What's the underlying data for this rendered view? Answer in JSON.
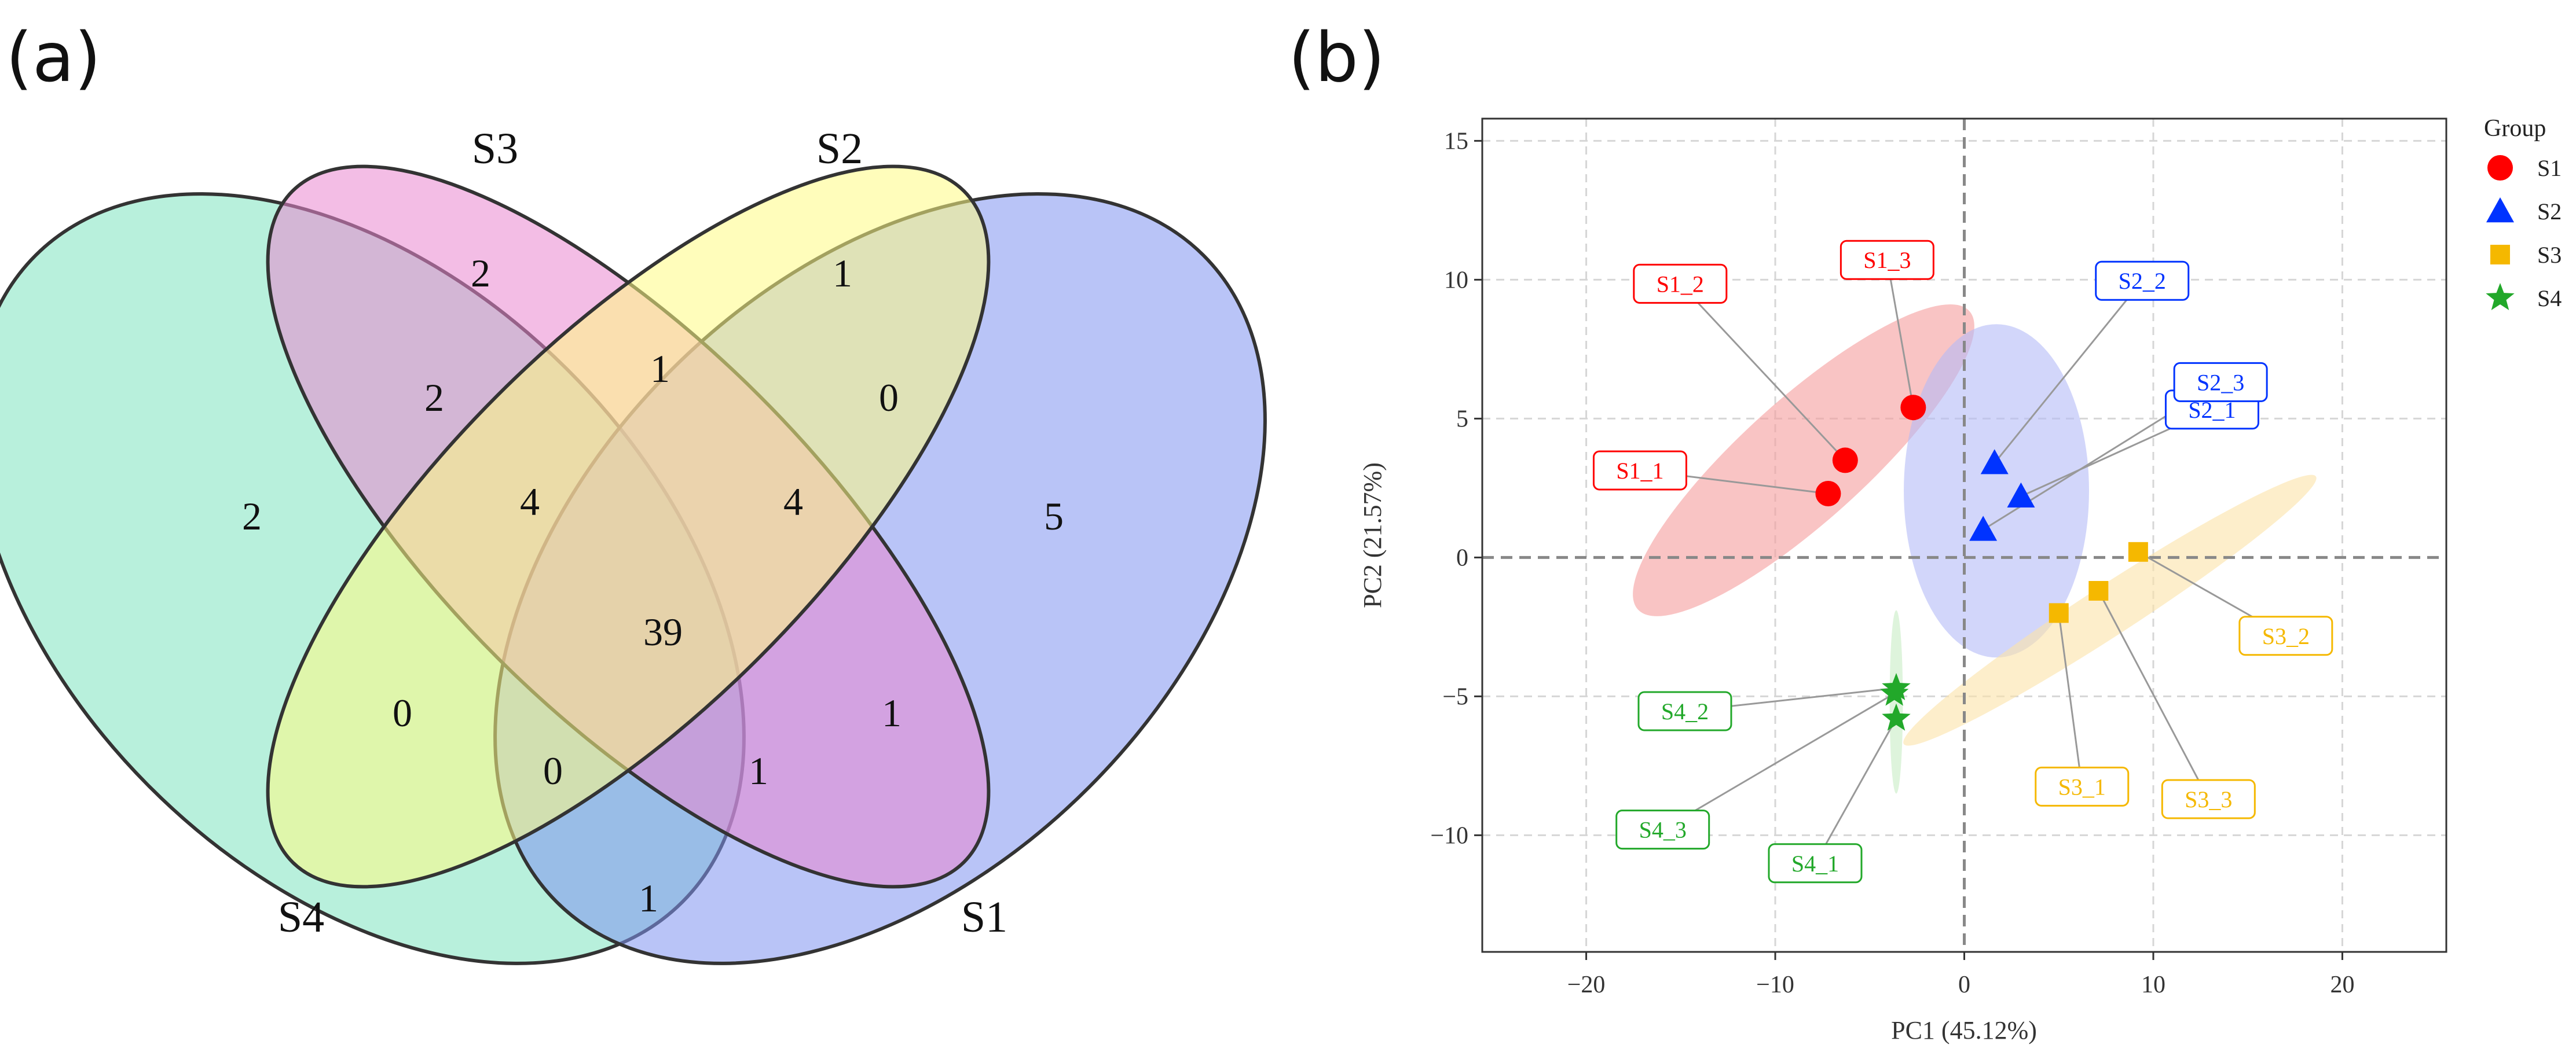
{
  "panel_a_label": "(a)",
  "panel_b_label": "(b)",
  "venn": {
    "sets": [
      {
        "name": "S1",
        "color": "#8093f1"
      },
      {
        "name": "S2",
        "color": "#fffb84"
      },
      {
        "name": "S3",
        "color": "#e986cf"
      },
      {
        "name": "S4",
        "color": "#7ee3bf"
      }
    ],
    "counts": [
      {
        "region": "S3 only",
        "value": "2"
      },
      {
        "region": "S2 only",
        "value": "1"
      },
      {
        "region": "S3&S4",
        "value": "2"
      },
      {
        "region": "S2&S3",
        "value": "1"
      },
      {
        "region": "S1&S2",
        "value": "0"
      },
      {
        "region": "S4 only",
        "value": "2"
      },
      {
        "region": "S2&S3&S4",
        "value": "4"
      },
      {
        "region": "S1&S2&S3",
        "value": "4"
      },
      {
        "region": "S1 only",
        "value": "5"
      },
      {
        "region": "S1&S2&S3&S4",
        "value": "39"
      },
      {
        "region": "S2&S4",
        "value": "0"
      },
      {
        "region": "S1&S3",
        "value": "1"
      },
      {
        "region": "S1&S2&S4",
        "value": "0"
      },
      {
        "region": "S1&S3&S4",
        "value": "1"
      },
      {
        "region": "S1&S4",
        "value": "1"
      }
    ]
  },
  "chart_data": {
    "type": "scatter",
    "xlabel": "PC1 (45.12%)",
    "ylabel": "PC2 (21.57%)",
    "xlim": [
      -25.5,
      25.5
    ],
    "ylim": [
      -14.2,
      15.8
    ],
    "xticks": [
      -20,
      -10,
      0,
      10,
      20
    ],
    "xtick_labels": [
      "−20",
      "−10",
      "0",
      "10",
      "20"
    ],
    "yticks": [
      -10,
      -5,
      0,
      5,
      10,
      15
    ],
    "ytick_labels": [
      "−10",
      "−5",
      "0",
      "5",
      "10",
      "15"
    ],
    "grid": true,
    "legend_title": "Group",
    "legend_position": "right",
    "series": [
      {
        "name": "S1",
        "color": "#ff0000",
        "marker": "circle",
        "points": [
          {
            "label": "S1_1",
            "x": -7.2,
            "y": 2.3
          },
          {
            "label": "S1_2",
            "x": -6.3,
            "y": 3.5
          },
          {
            "label": "S1_3",
            "x": -2.7,
            "y": 5.4
          }
        ],
        "ellipse": {
          "cx": -8.5,
          "cy": 3.5,
          "rx": 11.8,
          "ry": 2.2,
          "angle_deg": 42,
          "fill": "#f59c9c"
        }
      },
      {
        "name": "S2",
        "color": "#0033ff",
        "marker": "triangle",
        "points": [
          {
            "label": "S2_1",
            "x": 3.0,
            "y": 2.2
          },
          {
            "label": "S2_2",
            "x": 1.6,
            "y": 3.4
          },
          {
            "label": "S2_3",
            "x": 1.0,
            "y": 1.0
          }
        ],
        "ellipse": {
          "cx": 1.7,
          "cy": 2.4,
          "rx": 4.9,
          "ry": 6.0,
          "angle_deg": 0,
          "fill": "#b4baf7"
        }
      },
      {
        "name": "S3",
        "color": "#f5b800",
        "marker": "square",
        "points": [
          {
            "label": "S3_1",
            "x": 5.0,
            "y": -2.0
          },
          {
            "label": "S3_2",
            "x": 9.2,
            "y": 0.2
          },
          {
            "label": "S3_3",
            "x": 7.1,
            "y": -1.2
          }
        ],
        "ellipse": {
          "cx": 7.7,
          "cy": -1.9,
          "rx": 13.0,
          "ry": 0.9,
          "angle_deg": 33,
          "fill": "#fbe2a8"
        }
      },
      {
        "name": "S4",
        "color": "#22a82a",
        "marker": "star",
        "points": [
          {
            "label": "S4_1",
            "x": -3.6,
            "y": -5.8
          },
          {
            "label": "S4_2",
            "x": -3.6,
            "y": -4.7
          },
          {
            "label": "S4_3",
            "x": -3.7,
            "y": -4.9
          }
        ],
        "ellipse": {
          "cx": -3.6,
          "cy": -5.2,
          "rx": 0.35,
          "ry": 3.3,
          "angle_deg": 0,
          "fill": "#c8ecc4"
        }
      }
    ]
  }
}
